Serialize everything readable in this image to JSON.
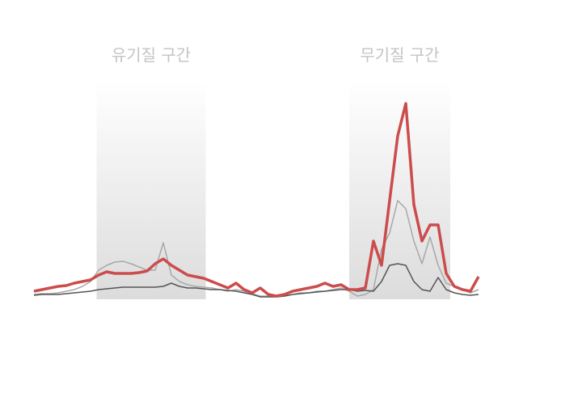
{
  "chart_data": {
    "type": "line",
    "bands": [
      {
        "label": "유기질 구간",
        "x": [
          15.5,
          42.5
        ]
      },
      {
        "label": "무기질 구간",
        "x": [
          78,
          103
        ]
      }
    ],
    "x": [
      0,
      2,
      4,
      6,
      8,
      10,
      12,
      14,
      16,
      18,
      20,
      22,
      24,
      26,
      28,
      30,
      32,
      34,
      36,
      38,
      40,
      42,
      44,
      46,
      48,
      50,
      52,
      54,
      56,
      58,
      60,
      62,
      64,
      66,
      68,
      70,
      72,
      74,
      76,
      78,
      80,
      82,
      84,
      86,
      88,
      90,
      92,
      94,
      96,
      98,
      100,
      102,
      104,
      106,
      108,
      110
    ],
    "xlim": [
      0,
      110
    ],
    "ylim": [
      0,
      270
    ],
    "series": [
      {
        "color": "#a8a8a8",
        "width": 1.5,
        "values": [
          4,
          5,
          5,
          6,
          8,
          10,
          14,
          20,
          34,
          40,
          44,
          45,
          42,
          38,
          34,
          34,
          68,
          28,
          20,
          16,
          14,
          13,
          12,
          10,
          8,
          10,
          8,
          5,
          2,
          2,
          1,
          2,
          4,
          6,
          6,
          8,
          8,
          10,
          12,
          8,
          2,
          4,
          10,
          60,
          80,
          120,
          110,
          70,
          42,
          75,
          40,
          18,
          14,
          10,
          6,
          10
        ]
      },
      {
        "color": "#555555",
        "width": 1.5,
        "values": [
          3,
          4,
          4,
          4,
          5,
          6,
          7,
          8,
          10,
          11,
          12,
          13,
          13,
          13,
          13,
          13,
          14,
          18,
          14,
          12,
          12,
          11,
          10,
          10,
          9,
          8,
          6,
          4,
          1,
          1,
          1,
          2,
          4,
          5,
          6,
          7,
          8,
          9,
          10,
          10,
          8,
          9,
          8,
          20,
          40,
          42,
          40,
          20,
          10,
          8,
          25,
          10,
          6,
          4,
          3,
          4
        ]
      },
      {
        "color": "#cc4c4c",
        "width": 3.5,
        "values": [
          8,
          10,
          12,
          14,
          15,
          18,
          20,
          22,
          28,
          32,
          30,
          30,
          30,
          31,
          33,
          42,
          48,
          40,
          34,
          28,
          26,
          24,
          20,
          16,
          12,
          18,
          10,
          6,
          12,
          4,
          2,
          4,
          8,
          10,
          12,
          14,
          18,
          14,
          16,
          10,
          10,
          12,
          70,
          40,
          120,
          200,
          240,
          115,
          70,
          90,
          90,
          30,
          14,
          10,
          8,
          26
        ]
      }
    ]
  }
}
